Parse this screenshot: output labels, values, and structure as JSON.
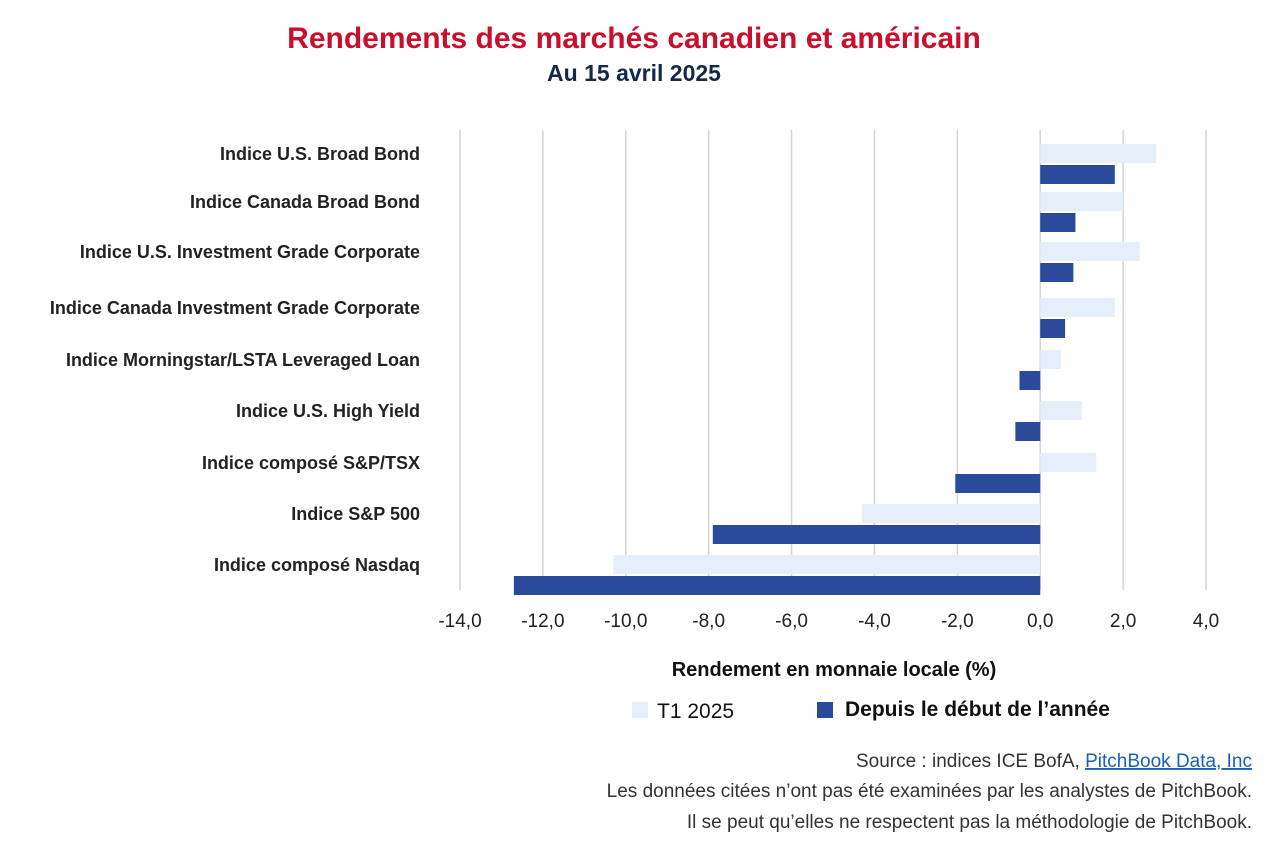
{
  "chart_data": {
    "type": "bar",
    "orientation": "horizontal",
    "title": "Rendements des marchés canadien et américain",
    "subtitle": "Au 15 avril 2025",
    "xlabel": "Rendement en monnaie locale (%)",
    "xlim": [
      -14,
      4
    ],
    "xticks": [
      -14,
      -12,
      -10,
      -8,
      -6,
      -4,
      -2,
      0,
      2,
      4
    ],
    "xtick_labels": [
      "-14,0",
      "-12,0",
      "-10,0",
      "-8,0",
      "-6,0",
      "-4,0",
      "-2,0",
      "0,0",
      "2,0",
      "4,0"
    ],
    "grid": true,
    "categories": [
      "Indice U.S. Broad Bond",
      "Indice Canada Broad Bond",
      "Indice U.S. Investment Grade Corporate",
      "Indice Canada Investment Grade Corporate",
      "Indice Morningstar/LSTA Leveraged Loan",
      "Indice U.S. High Yield",
      "Indice composé S&P/TSX",
      "Indice S&P 500",
      "Indice composé Nasdaq"
    ],
    "series": [
      {
        "name": "T1 2025",
        "color": "#e6eff9",
        "values": [
          2.8,
          2.0,
          2.4,
          1.8,
          0.5,
          1.0,
          1.35,
          -4.3,
          -10.3
        ]
      },
      {
        "name": "Depuis le début de l’année",
        "color": "#2a4b9b",
        "values": [
          1.8,
          0.85,
          0.8,
          0.6,
          -0.5,
          -0.6,
          -2.05,
          -7.9,
          -12.7
        ]
      }
    ],
    "legend_position": "bottom"
  },
  "source": {
    "prefix": "Source : indices ICE BofA, ",
    "link_text": "PitchBook Data, Inc",
    "note1": "Les données citées n’ont pas été examinées par les analystes de PitchBook.",
    "note2": "Il se peut qu’elles ne respectent pas la méthodologie de PitchBook."
  },
  "colors": {
    "title": "#c8102e",
    "subtitle": "#14284b",
    "grid": "#d4d4d4"
  }
}
